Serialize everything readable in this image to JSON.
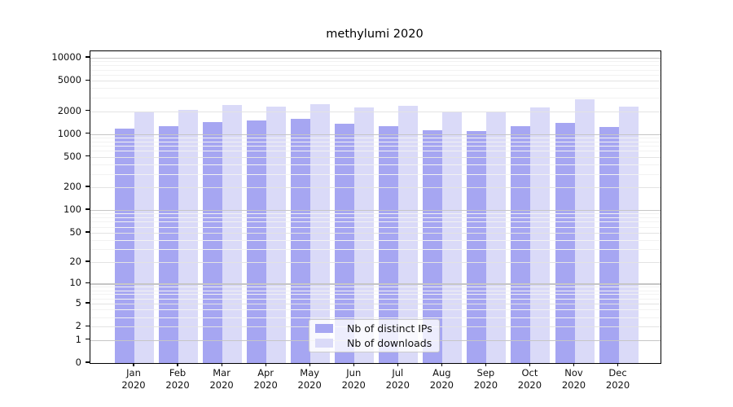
{
  "title": "methylumi 2020",
  "legend": {
    "entries": [
      "Nb of distinct IPs",
      "Nb of downloads"
    ]
  },
  "chart_data": {
    "type": "bar",
    "title": "methylumi 2020",
    "categories": [
      "Jan",
      "Feb",
      "Mar",
      "Apr",
      "May",
      "Jun",
      "Jul",
      "Aug",
      "Sep",
      "Oct",
      "Nov",
      "Dec"
    ],
    "year_label": "2020",
    "series": [
      {
        "name": "Nb of distinct IPs",
        "color": "#a6a6f2",
        "values": [
          1190,
          1260,
          1430,
          1510,
          1570,
          1370,
          1280,
          1130,
          1100,
          1270,
          1390,
          1230
        ]
      },
      {
        "name": "Nb of downloads",
        "color": "#dadaf8",
        "values": [
          1940,
          2075,
          2400,
          2310,
          2450,
          2230,
          2330,
          1950,
          2000,
          2220,
          2840,
          2270
        ]
      }
    ],
    "yscale": "log1p",
    "yticks": [
      0,
      1,
      2,
      5,
      10,
      20,
      50,
      100,
      200,
      500,
      1000,
      2000,
      5000,
      10000
    ],
    "ylim": [
      0,
      11500
    ],
    "xlabel": "",
    "ylabel": "",
    "grid": "horizontal",
    "legend_position": "bottom-center",
    "colors": {
      "grid_decade": "#c6c6c6",
      "grid_mid": "#e3e3e3",
      "grid_minor": "#f2f2f2",
      "axis": "#000000",
      "text": "#1a1a1a"
    }
  }
}
